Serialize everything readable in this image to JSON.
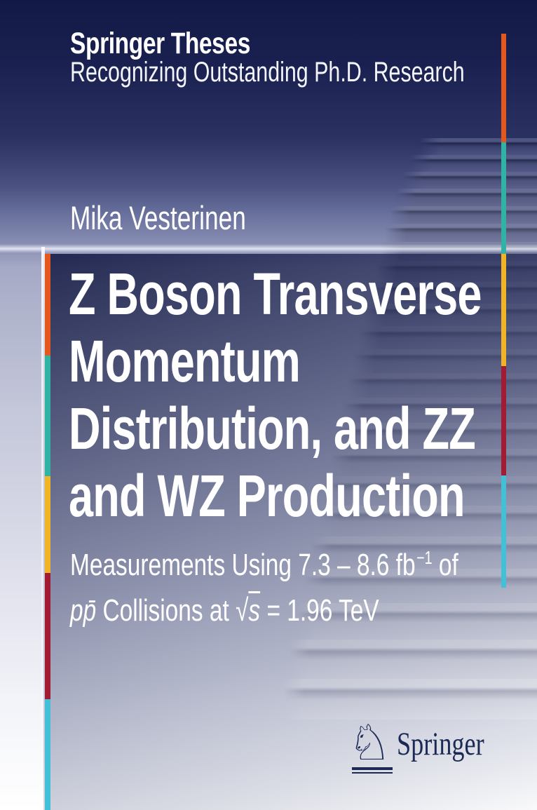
{
  "series": {
    "name": "Springer Theses",
    "tagline": "Recognizing Outstanding Ph.D. Research"
  },
  "author": "Mika Vesterinen",
  "title": {
    "lines": [
      "Z Boson Transverse",
      "Momentum",
      "Distribution, and ZZ",
      "and WZ Production"
    ]
  },
  "subtitle": {
    "line1": {
      "text": "Measurements Using 7.3 – 8.6 fb",
      "sup": "−1",
      "tail": " of"
    },
    "line2": {
      "p_pbar": "pp̄",
      "mid": " Collisions at ",
      "sqrt_sign": "√",
      "s": "s",
      "tail": " = 1.96 TeV"
    }
  },
  "publisher": {
    "name": "Springer",
    "logo_icon": "springer-horse-icon",
    "logo_glyph": "♘"
  },
  "colors": {
    "accent_orange": "#e4581e",
    "accent_teal": "#2fb3a4",
    "accent_yellow": "#f0b425",
    "accent_maroon": "#a31a33",
    "accent_cyan": "#41c0d8",
    "logo_navy": "#1b2a55",
    "sky_navy": "#121946"
  }
}
